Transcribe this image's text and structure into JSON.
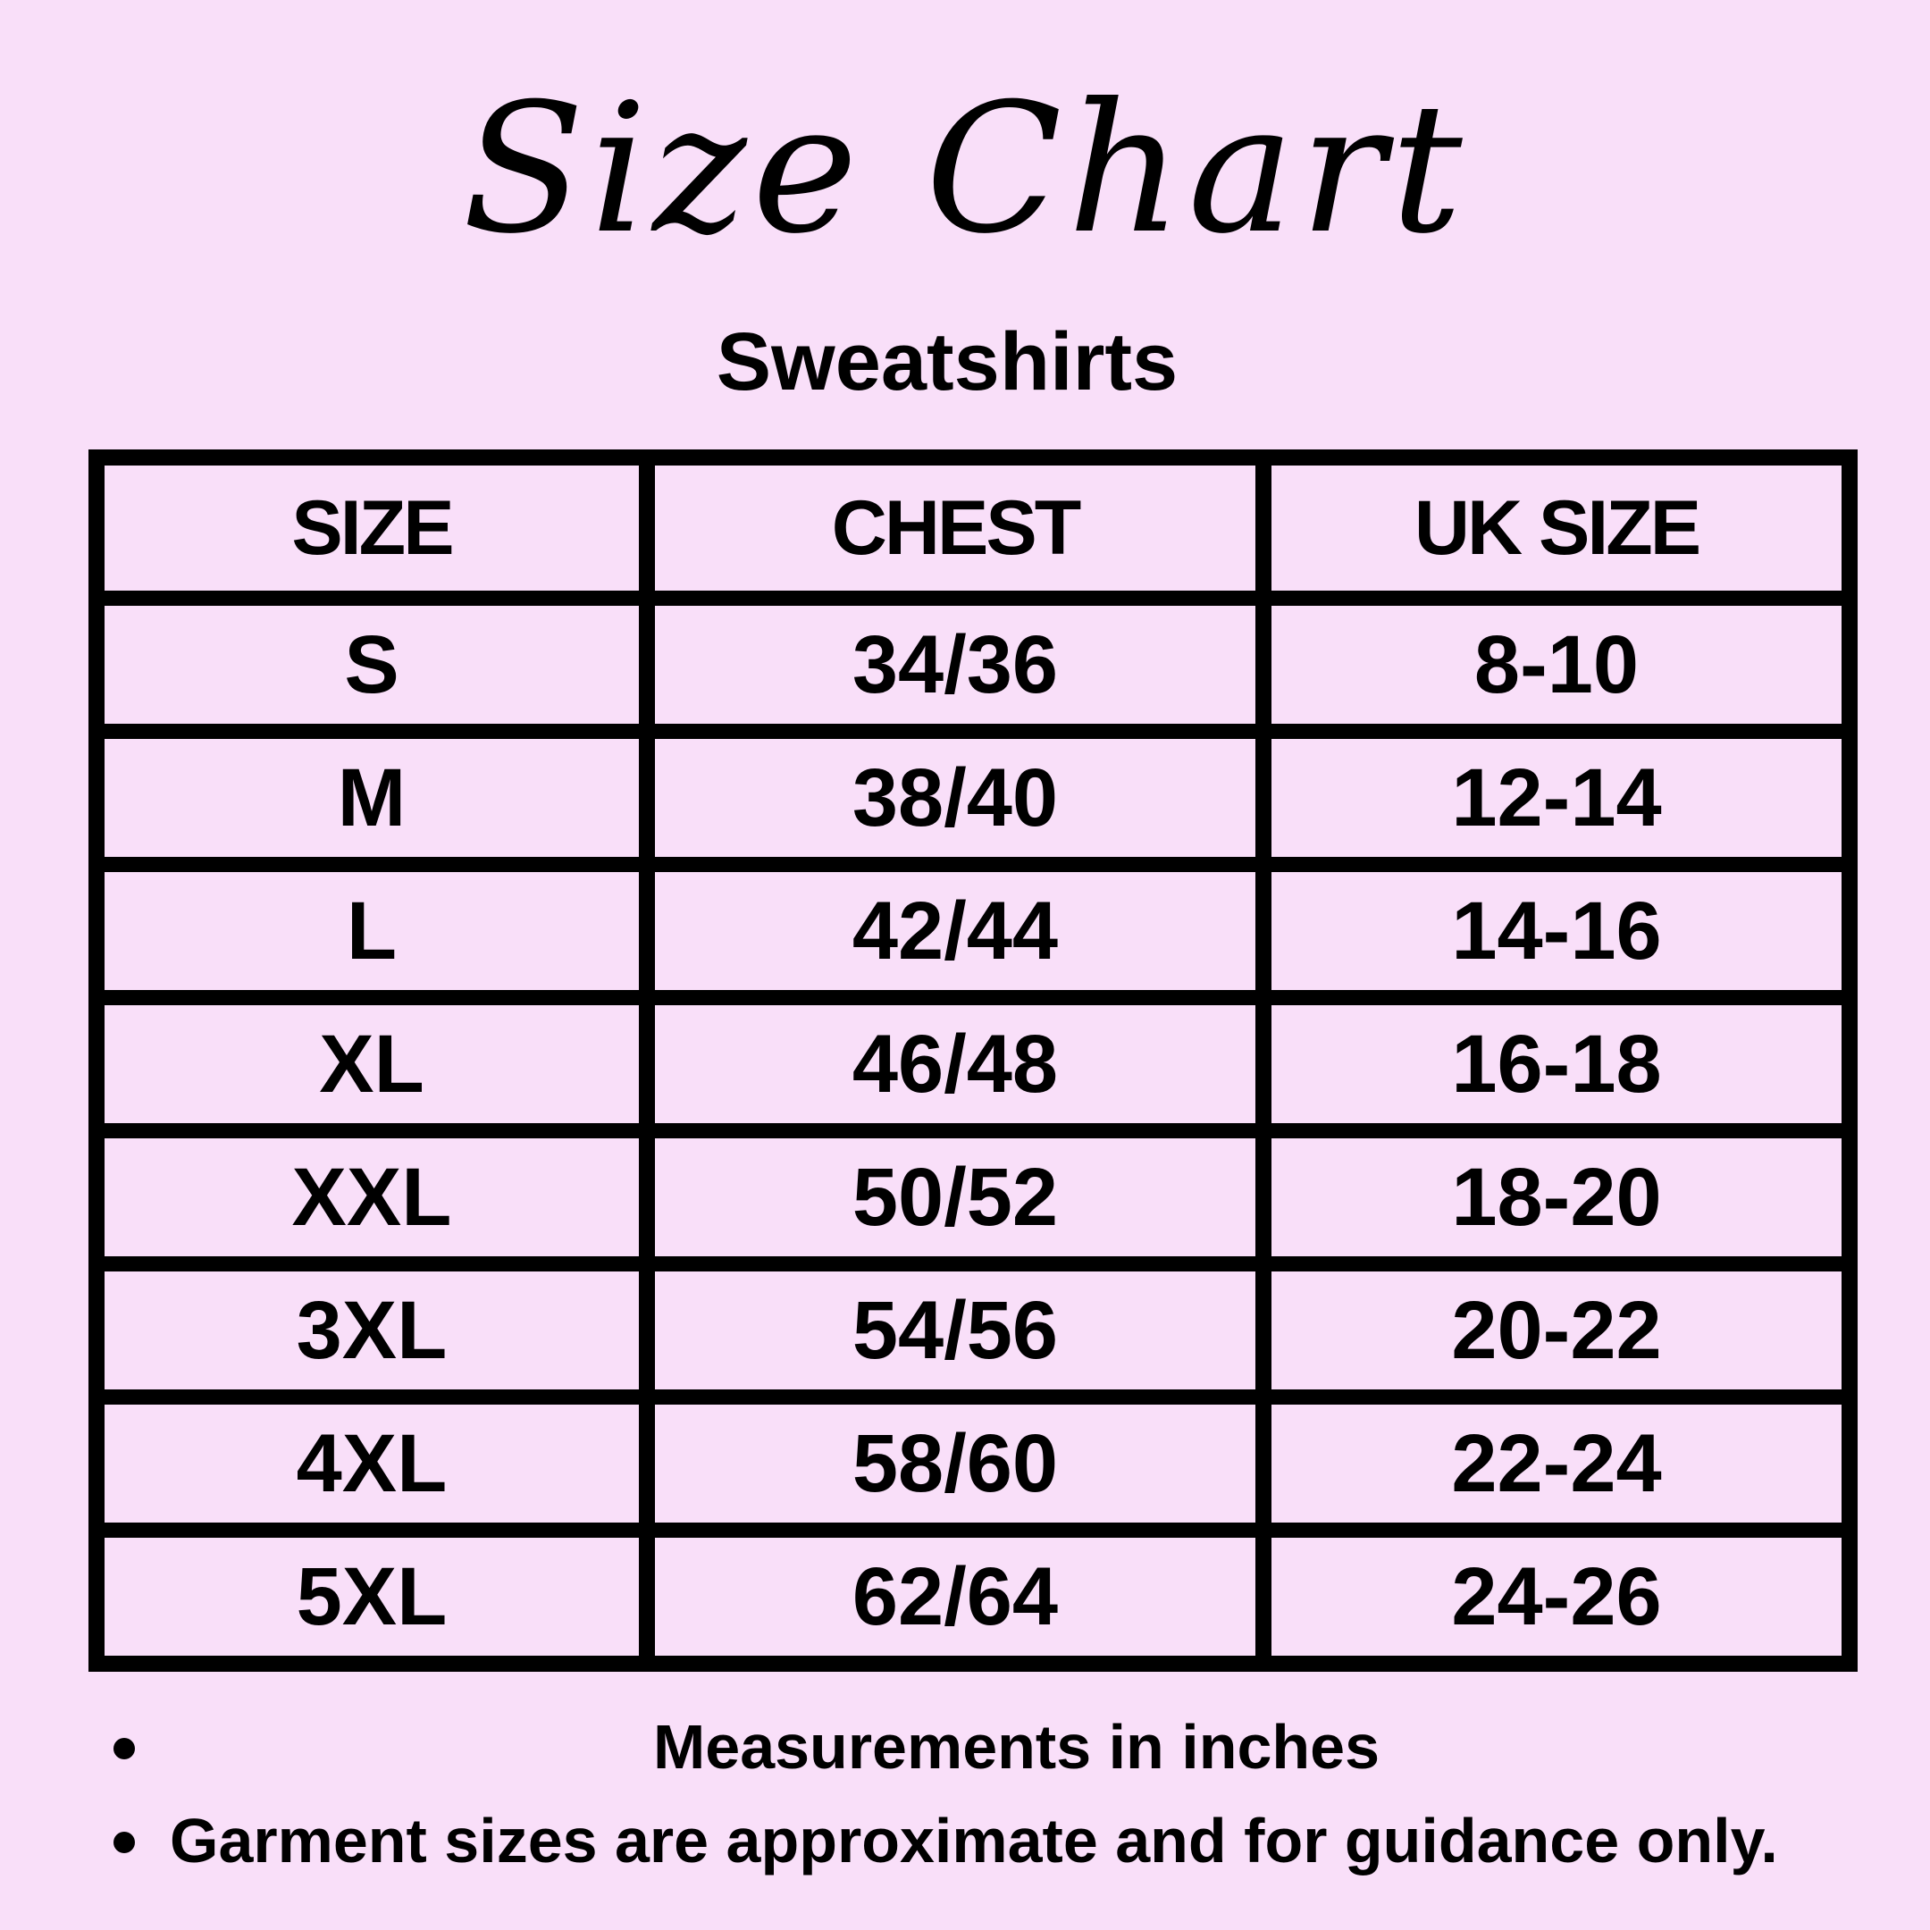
{
  "title": "Size Chart",
  "subtitle": "Sweatshirts",
  "table": {
    "headers": [
      "SIZE",
      "CHEST",
      "UK SIZE"
    ],
    "rows": [
      [
        "S",
        "34/36",
        "8-10"
      ],
      [
        "M",
        "38/40",
        "12-14"
      ],
      [
        "L",
        "42/44",
        "14-16"
      ],
      [
        "XL",
        "46/48",
        "16-18"
      ],
      [
        "XXL",
        "50/52",
        "18-20"
      ],
      [
        "3XL",
        "54/56",
        "20-22"
      ],
      [
        "4XL",
        "58/60",
        "22-24"
      ],
      [
        "5XL",
        "62/64",
        "24-26"
      ]
    ]
  },
  "notes": [
    "Measurements in inches",
    "Garment sizes are approximate and for guidance only."
  ],
  "colors": {
    "background": "#f9dff9",
    "border": "#000000"
  }
}
